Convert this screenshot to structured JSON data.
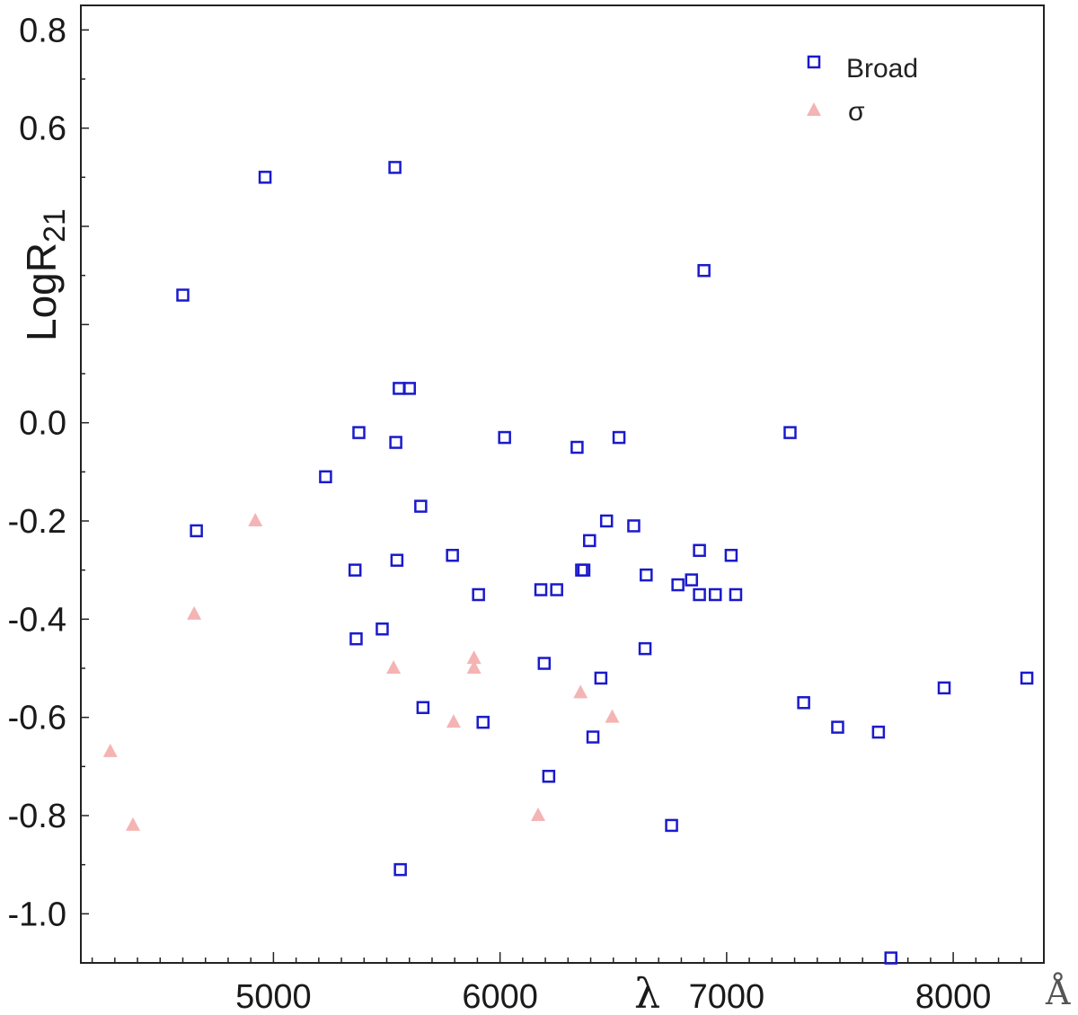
{
  "chart_data": {
    "type": "scatter",
    "title": "",
    "ylabel": "LogR",
    "ylabel_sub": "21",
    "xlabel": "λ",
    "x_unit": "Å",
    "xlim": [
      4150,
      8400
    ],
    "ylim": [
      -1.1,
      0.85
    ],
    "x_ticks": [
      5000,
      6000,
      7000,
      8000
    ],
    "x_tick_labels": [
      "5000",
      "6000",
      "7000",
      "8000"
    ],
    "y_ticks": [
      0.8,
      0.6,
      0.0,
      -0.2,
      -0.4,
      -0.6,
      -0.8,
      -1.0
    ],
    "y_tick_labels": [
      "0.8",
      "0.6",
      "0.0",
      "-0.2",
      "-0.4",
      "-0.6",
      "-0.8",
      "-1.0"
    ],
    "grid": false,
    "legend_position": "top-right",
    "series": [
      {
        "name": "Broad",
        "marker": "open-square",
        "color": "#1a1acc",
        "points": [
          [
            4963,
            0.5
          ],
          [
            4600,
            0.26
          ],
          [
            4660,
            -0.22
          ],
          [
            5536,
            0.52
          ],
          [
            5555,
            0.07
          ],
          [
            5600,
            0.07
          ],
          [
            5377,
            -0.02
          ],
          [
            5540,
            -0.04
          ],
          [
            5230,
            -0.11
          ],
          [
            5650,
            -0.17
          ],
          [
            5360,
            -0.3
          ],
          [
            5545,
            -0.28
          ],
          [
            5790,
            -0.27
          ],
          [
            5480,
            -0.42
          ],
          [
            5365,
            -0.44
          ],
          [
            5660,
            -0.58
          ],
          [
            5905,
            -0.35
          ],
          [
            5925,
            -0.61
          ],
          [
            6020,
            -0.03
          ],
          [
            6180,
            -0.34
          ],
          [
            6250,
            -0.34
          ],
          [
            6340,
            -0.05
          ],
          [
            6395,
            -0.24
          ],
          [
            6360,
            -0.3
          ],
          [
            6370,
            -0.3
          ],
          [
            6470,
            -0.2
          ],
          [
            6590,
            -0.21
          ],
          [
            6645,
            -0.31
          ],
          [
            6195,
            -0.49
          ],
          [
            6640,
            -0.46
          ],
          [
            6445,
            -0.52
          ],
          [
            6410,
            -0.64
          ],
          [
            6215,
            -0.72
          ],
          [
            6525,
            -0.03
          ],
          [
            6757,
            -0.82
          ],
          [
            6785,
            -0.33
          ],
          [
            6845,
            -0.32
          ],
          [
            6880,
            -0.26
          ],
          [
            6880,
            -0.35
          ],
          [
            6950,
            -0.35
          ],
          [
            7020,
            -0.27
          ],
          [
            7040,
            -0.35
          ],
          [
            6900,
            0.31
          ],
          [
            7280,
            -0.02
          ],
          [
            7340,
            -0.57
          ],
          [
            7490,
            -0.62
          ],
          [
            7670,
            -0.63
          ],
          [
            7725,
            -1.09
          ],
          [
            7960,
            -0.54
          ],
          [
            8325,
            -0.52
          ],
          [
            5560,
            -0.91
          ]
        ]
      },
      {
        "name": "σ",
        "marker": "filled-triangle",
        "color": "#f4b4b4",
        "points": [
          [
            4280,
            -0.67
          ],
          [
            4380,
            -0.82
          ],
          [
            4650,
            -0.39
          ],
          [
            4920,
            -0.2
          ],
          [
            5530,
            -0.5
          ],
          [
            5795,
            -0.61
          ],
          [
            5885,
            -0.48
          ],
          [
            5885,
            -0.5
          ],
          [
            6168,
            -0.8
          ],
          [
            6355,
            -0.55
          ],
          [
            6495,
            -0.6
          ]
        ]
      }
    ]
  }
}
